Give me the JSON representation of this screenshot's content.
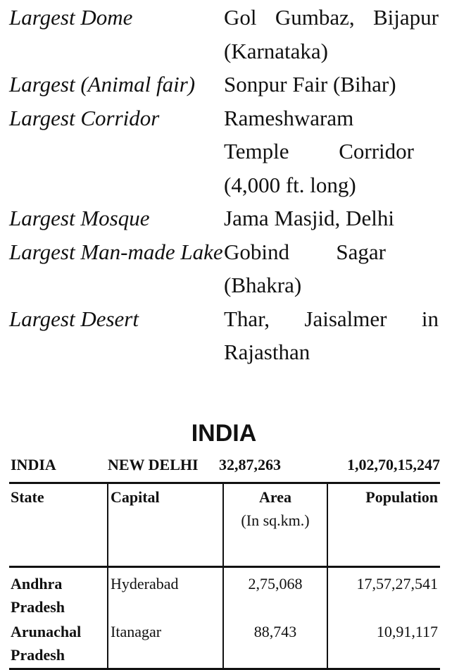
{
  "facts": [
    {
      "label": "Largest Dome",
      "value": "Gol Gumbaz, Bijapur (Karnataka)"
    },
    {
      "label": "Largest (Animal fair)",
      "value": "Sonpur Fair (Bihar)"
    },
    {
      "label": "Largest Corridor",
      "value": "Rameshwaram Temple Corridor (4,000 ft. long)"
    },
    {
      "label": "Largest Mosque",
      "value": "Jama Masjid, Delhi"
    },
    {
      "label": "Largest Man-made Lake",
      "value": "Gobind Sagar (Bhakra)"
    },
    {
      "label": "Largest Desert",
      "value": "Thar, Jaisalmer in Rajasthan"
    }
  ],
  "section_title": "INDIA",
  "india_row": {
    "name": "INDIA",
    "capital": "NEW DELHI",
    "area": "32,87,263",
    "population": "1,02,70,15,247"
  },
  "table": {
    "headers": {
      "state": "State",
      "capital": "Capital",
      "area": "Area",
      "area_unit": "(In sq.km.)",
      "population": "Population"
    },
    "rows": [
      {
        "state": "Andhra Pradesh",
        "capital": "Hyderabad",
        "area": "2,75,068",
        "population": "17,57,27,541"
      },
      {
        "state": "Arunachal Pradesh",
        "capital": "Itanagar",
        "area": "88,743",
        "population": "10,91,117"
      }
    ]
  }
}
